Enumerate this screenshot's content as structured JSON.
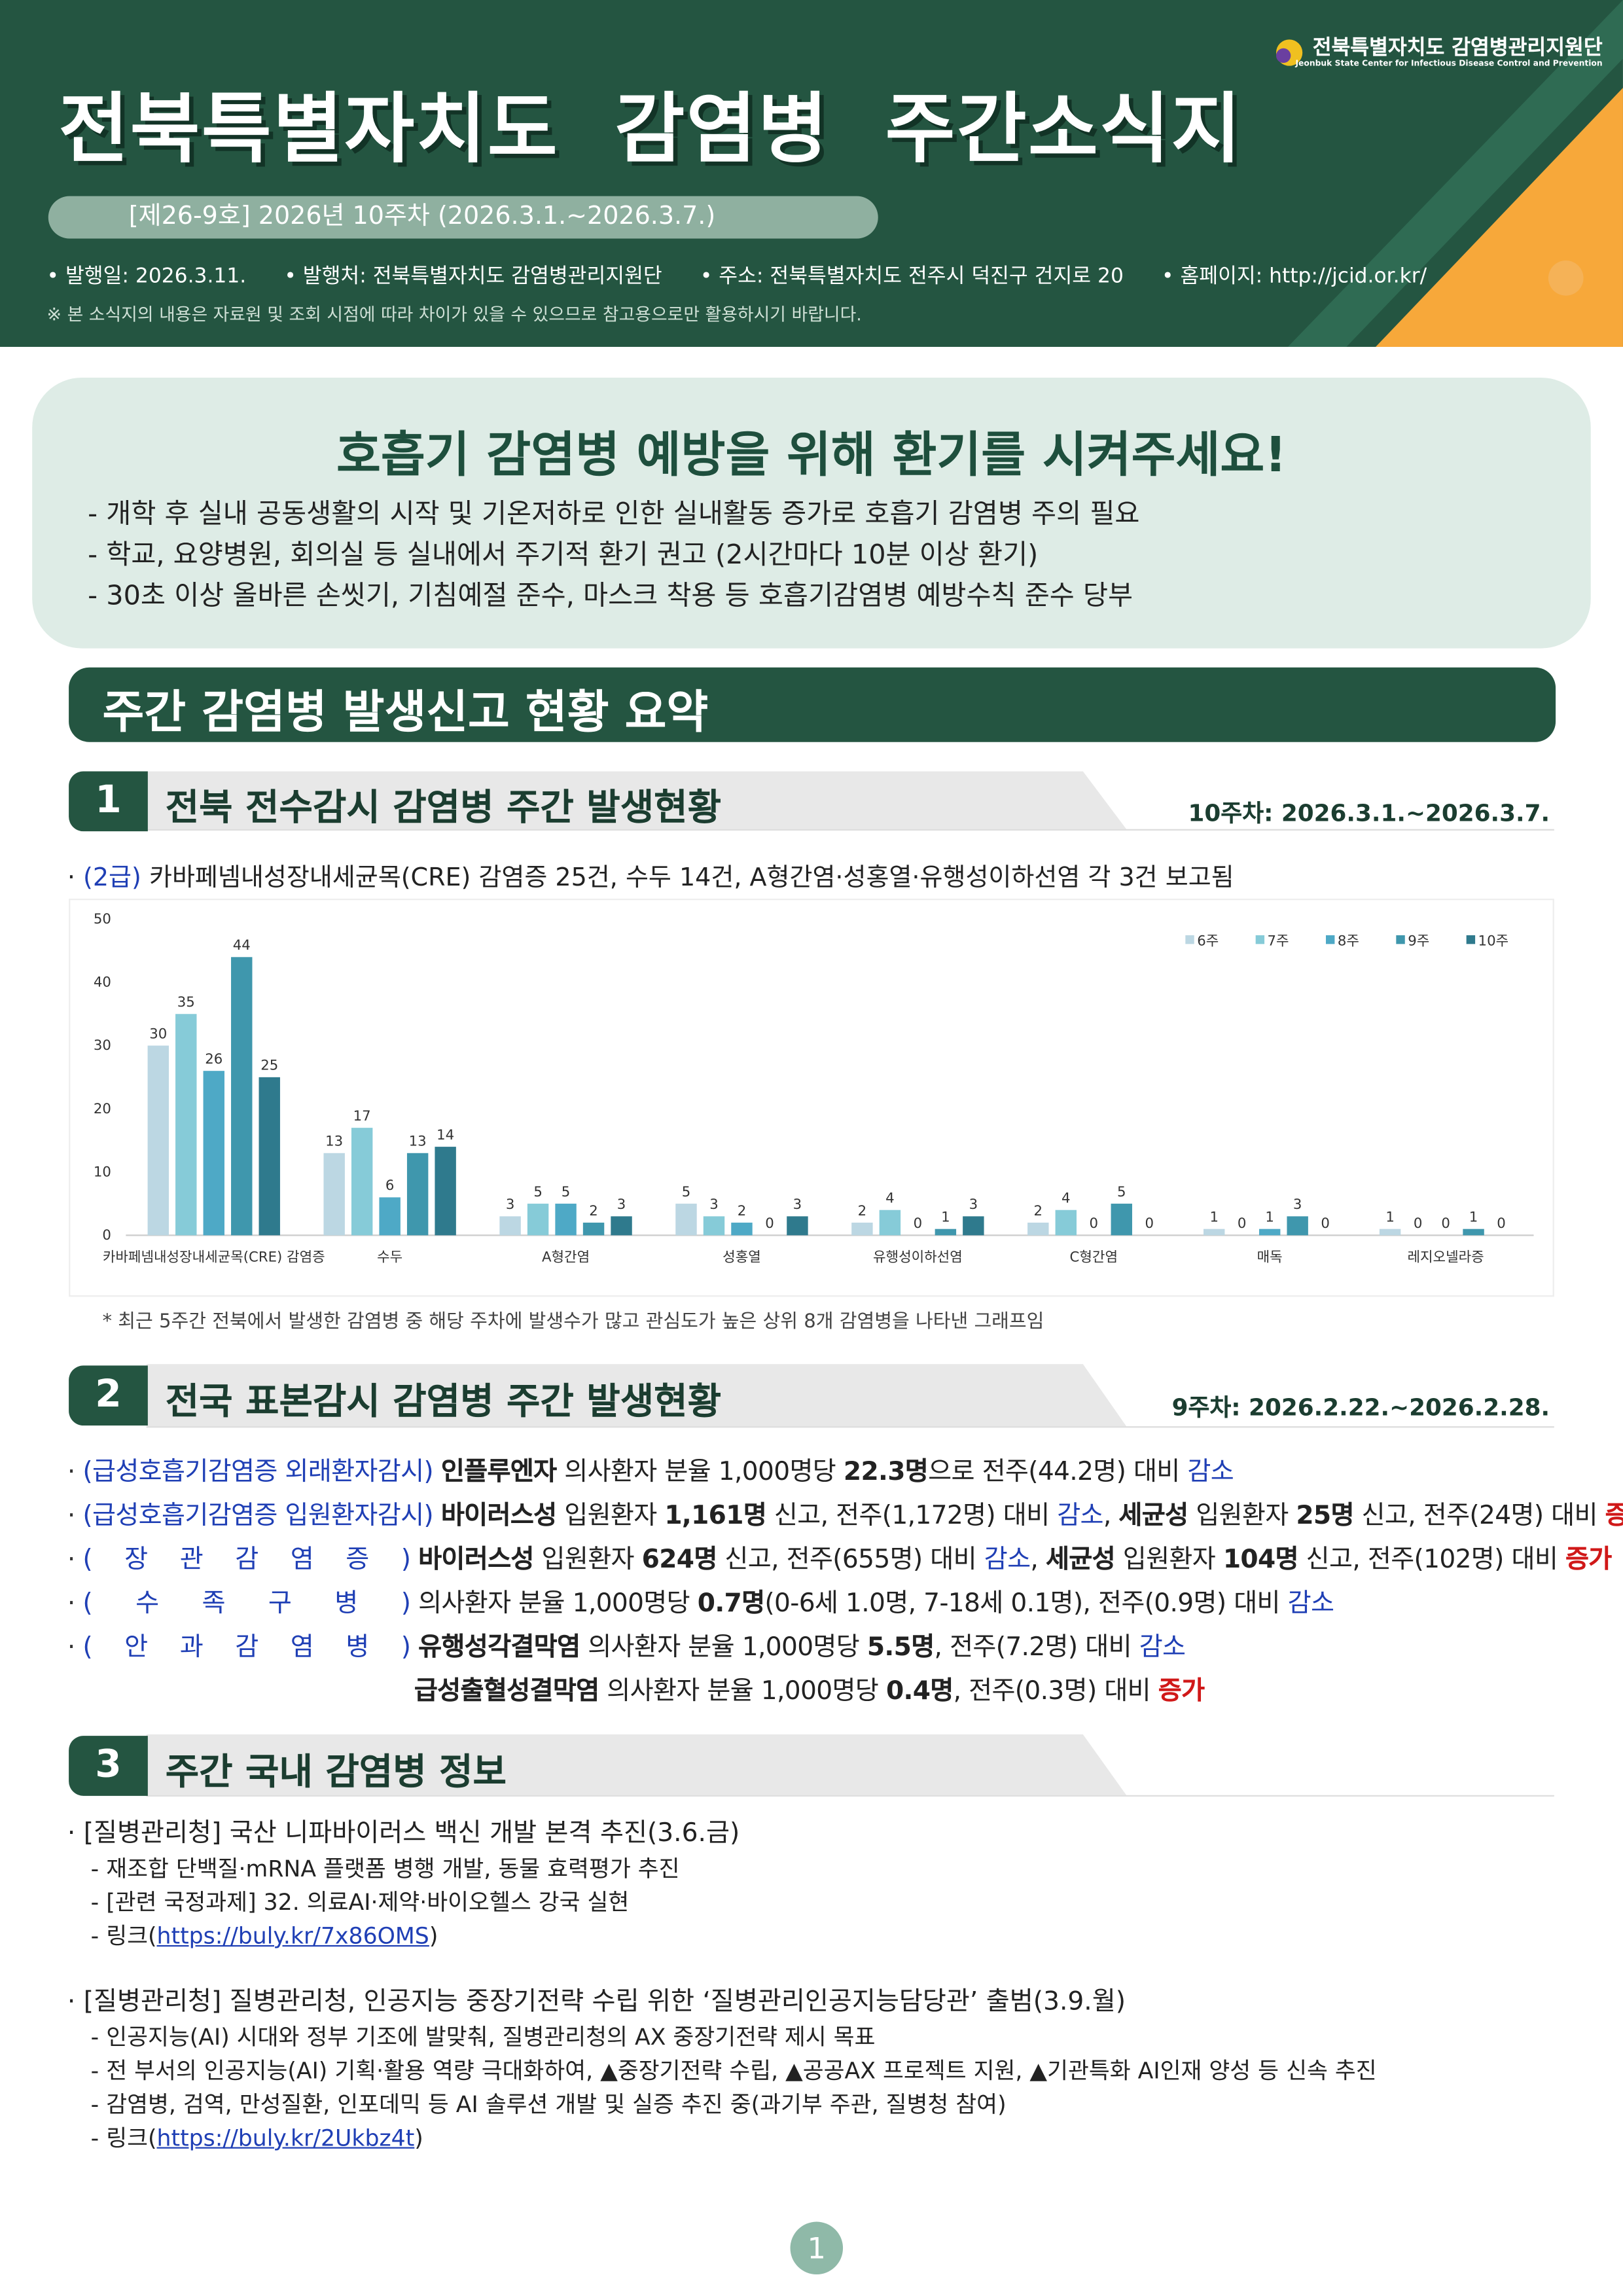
{
  "header": {
    "logo": "전북특별자치도 감염병관리지원단",
    "logo_en": "Jeonbuk State Center for Infectious Disease Control and Prevention",
    "title": "전북특별자치도  감염병  주간소식지",
    "issue": "[제26-9호] 2026년 10주차 (2026.3.1.~2026.3.7.)",
    "info": [
      "발행일: 2026.3.11.",
      "발행처: 전북특별자치도 감염병관리지원단",
      "주소: 전북특별자치도 전주시 덕진구 건지로 20",
      "홈페이지: http://jcid.or.kr/"
    ],
    "notice": "※ 본 소식지의 내용은 자료원 및 조회 시점에 따라 차이가 있을 수 있으므로 참고용으로만 활용하시기 바랍니다."
  },
  "banner": {
    "title": "호흡기 감염병 예방을 위해 환기를 시켜주세요!",
    "items": [
      "개학 후 실내 공동생활의 시작 및 기온저하로 인한 실내활동 증가로 호흡기 감염병 주의 필요",
      "학교, 요양병원, 회의실 등 실내에서 주기적 환기 권고 (2시간마다 10분 이상 환기)",
      "30초 이상 올바른 손씻기, 기침예절 준수, 마스크 착용 등 호흡기감염병 예방수칙 준수 당부"
    ]
  },
  "summary_title": "주간 감염병 발생신고 현황 요약",
  "section1": {
    "number": "1",
    "title": "전북 전수감시 감염병 주간 발생현황",
    "period": "10주차: 2026.3.1.~2026.3.7.",
    "line": [
      {
        "text": "(2급)",
        "style": "blue"
      },
      {
        "text": " 카바페넴내성장내세균목(CRE) 감염증 25건, 수두 14건, A형간염·성홍열·유행성이하선염 각 3건 보고됨",
        "style": ""
      }
    ],
    "note": "* 최근 5주간 전북에서 발생한 감염병 중 해당 주차에 발생수가 많고 관심도가 높은 상위 8개 감염병을 나타낸 그래프임"
  },
  "chart_data": {
    "type": "bar",
    "categories": [
      "카바페넴내성장내세균목(CRE) 감염증",
      "수두",
      "A형간염",
      "성홍열",
      "유행성이하선염",
      "C형간염",
      "매독",
      "레지오넬라증"
    ],
    "series": [
      {
        "name": "6주",
        "color": "#bcd7e3",
        "values": [
          30,
          13,
          3,
          5,
          2,
          2,
          1,
          1
        ]
      },
      {
        "name": "7주",
        "color": "#86cbd8",
        "values": [
          35,
          17,
          5,
          3,
          4,
          4,
          0,
          0
        ]
      },
      {
        "name": "8주",
        "color": "#4ea9c6",
        "values": [
          26,
          6,
          5,
          2,
          0,
          0,
          1,
          0
        ]
      },
      {
        "name": "9주",
        "color": "#3f97ad",
        "values": [
          44,
          13,
          2,
          0,
          1,
          5,
          3,
          1
        ]
      },
      {
        "name": "10주",
        "color": "#2f7a8d",
        "values": [
          25,
          14,
          3,
          3,
          3,
          0,
          0,
          0
        ]
      }
    ],
    "ylim": [
      0,
      50
    ],
    "yticks": [
      0,
      10,
      20,
      30,
      40,
      50
    ],
    "grid": false,
    "legend": "top-right"
  },
  "section2": {
    "number": "2",
    "title": "전국 표본감시 감염병 주간 발생현황",
    "period": "9주차: 2026.2.22.~2026.2.28.",
    "lines": [
      [
        {
          "text": "(급성호흡기감염증 외래환자감시)",
          "style": "blue"
        },
        {
          "text": " ",
          "style": ""
        },
        {
          "text": "인플루엔자",
          "style": "b"
        },
        {
          "text": " 의사환자 분율 1,000명당 ",
          "style": ""
        },
        {
          "text": "22.3명",
          "style": "b"
        },
        {
          "text": "으로 전주(44.2명) 대비 ",
          "style": ""
        },
        {
          "text": "감소",
          "style": "blue"
        }
      ],
      [
        {
          "text": "(급성호흡기감염증 입원환자감시)",
          "style": "blue"
        },
        {
          "text": " ",
          "style": ""
        },
        {
          "text": "바이러스성",
          "style": "b"
        },
        {
          "text": " 입원환자 ",
          "style": ""
        },
        {
          "text": "1,161명",
          "style": "b"
        },
        {
          "text": " 신고, 전주(1,172명) 대비 ",
          "style": ""
        },
        {
          "text": "감소",
          "style": "blue"
        },
        {
          "text": ", ",
          "style": ""
        },
        {
          "text": "세균성",
          "style": "b"
        },
        {
          "text": " 입원환자 ",
          "style": ""
        },
        {
          "text": "25명",
          "style": "b"
        },
        {
          "text": " 신고, 전주(24명) 대비 ",
          "style": ""
        },
        {
          "text": "증가",
          "style": "red"
        }
      ],
      [
        {
          "text": "( 장 관 감 염 증 )",
          "style": "lbl"
        },
        {
          "text": " ",
          "style": ""
        },
        {
          "text": "바이러스성",
          "style": "b"
        },
        {
          "text": " 입원환자 ",
          "style": ""
        },
        {
          "text": "624명",
          "style": "b"
        },
        {
          "text": " 신고, 전주(655명) 대비 ",
          "style": ""
        },
        {
          "text": "감소",
          "style": "blue"
        },
        {
          "text": ", ",
          "style": ""
        },
        {
          "text": "세균성",
          "style": "b"
        },
        {
          "text": " 입원환자 ",
          "style": ""
        },
        {
          "text": "104명",
          "style": "b"
        },
        {
          "text": " 신고, 전주(102명) 대비 ",
          "style": ""
        },
        {
          "text": "증가",
          "style": "red"
        }
      ],
      [
        {
          "text": "( 수 족 구 병 )",
          "style": "lbl"
        },
        {
          "text": " 의사환자 분율 1,000명당 ",
          "style": ""
        },
        {
          "text": "0.7명",
          "style": "b"
        },
        {
          "text": "(0-6세 1.0명, 7-18세 0.1명), 전주(0.9명) 대비 ",
          "style": ""
        },
        {
          "text": "감소",
          "style": "blue"
        }
      ],
      [
        {
          "text": "( 안 과 감 염 병 )",
          "style": "lbl"
        },
        {
          "text": " ",
          "style": ""
        },
        {
          "text": "유행성각결막염",
          "style": "b"
        },
        {
          "text": " 의사환자 분율 1,000명당 ",
          "style": ""
        },
        {
          "text": "5.5명",
          "style": "b"
        },
        {
          "text": ", 전주(7.2명) 대비 ",
          "style": ""
        },
        {
          "text": "감소",
          "style": "blue"
        }
      ],
      [
        {
          "text": "급성출혈성결막염",
          "style": "b"
        },
        {
          "text": " 의사환자 분율 1,000명당 ",
          "style": ""
        },
        {
          "text": "0.4명",
          "style": "b"
        },
        {
          "text": ", 전주(0.3명) 대비 ",
          "style": ""
        },
        {
          "text": "증가",
          "style": "red"
        }
      ]
    ]
  },
  "section3": {
    "number": "3",
    "title": "주간 국내 감염병 정보",
    "items": [
      {
        "head": "[질병관리청] 국산 니파바이러스 백신 개발 본격 추진(3.6.금)",
        "subs": [
          [
            {
              "text": "재조합 단백질·mRNA 플랫폼 병행 개발, 동물 효력평가 추진",
              "style": ""
            }
          ],
          [
            {
              "text": "[관련 국정과제] 32. 의료AI·제약·바이오헬스 강국 실현",
              "style": ""
            }
          ],
          [
            {
              "text": "링크(",
              "style": ""
            },
            {
              "text": "https://buly.kr/7x86OMS",
              "style": "link"
            },
            {
              "text": ")",
              "style": ""
            }
          ]
        ]
      },
      {
        "head": "[질병관리청] 질병관리청, 인공지능 중장기전략 수립 위한 ‘질병관리인공지능담당관’ 출범(3.9.월)",
        "subs": [
          [
            {
              "text": "인공지능(AI) 시대와 정부 기조에 발맞춰, 질병관리청의 AX 중장기전략 제시 목표",
              "style": ""
            }
          ],
          [
            {
              "text": "전 부서의 인공지능(AI) 기획·활용 역량 극대화하여, ▲중장기전략 수립, ▲공공AX 프로젝트 지원, ▲기관특화 AI인재 양성 등 신속 추진",
              "style": ""
            }
          ],
          [
            {
              "text": "감염병, 검역, 만성질환, 인포데믹 등 AI 솔루션 개발 및 실증 추진 중(과기부 주관, 질병청 참여)",
              "style": ""
            }
          ],
          [
            {
              "text": "링크(",
              "style": ""
            },
            {
              "text": "https://buly.kr/2Ukbz4t",
              "style": "link"
            },
            {
              "text": ")",
              "style": ""
            }
          ]
        ]
      }
    ]
  },
  "page_number": "1"
}
